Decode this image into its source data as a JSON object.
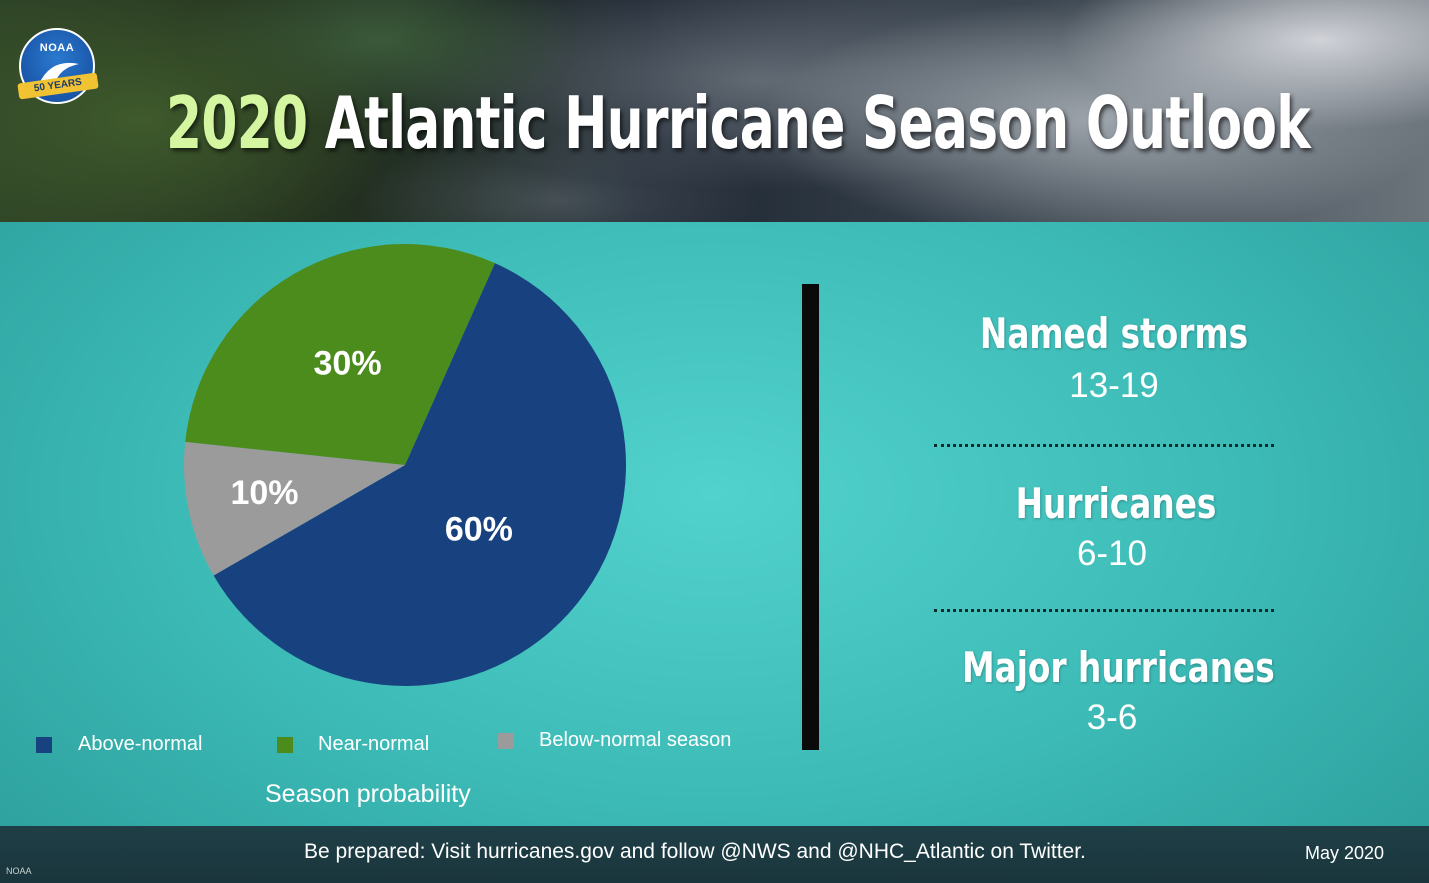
{
  "header": {
    "title_year": "2020",
    "title_rest": "Atlantic Hurricane Season Outlook",
    "logo_text": "NOAA",
    "logo_ribbon": "50 YEARS",
    "colors": {
      "year": "#d4f6a0",
      "title": "#ffffff"
    }
  },
  "chart_data": {
    "type": "pie",
    "title": "Season probability",
    "categories": [
      "Above-normal",
      "Near-normal",
      "Below-normal season"
    ],
    "values": [
      60,
      30,
      10
    ],
    "value_labels": [
      "60%",
      "30%",
      "10%"
    ],
    "colors": [
      "#17427f",
      "#4c8c1d",
      "#9b9b9b"
    ],
    "legend_placement": "bottom",
    "start_angle_deg": 24,
    "direction": "clockwise"
  },
  "stats": [
    {
      "label": "Named storms",
      "value": "13-19"
    },
    {
      "label": "Hurricanes",
      "value": "6-10"
    },
    {
      "label": "Major hurricanes",
      "value": "3-6"
    }
  ],
  "footer": {
    "message": "Be prepared: Visit hurricanes.gov and follow @NWS and @NHC_Atlantic on Twitter.",
    "date": "May 2020",
    "credit": "NOAA"
  }
}
